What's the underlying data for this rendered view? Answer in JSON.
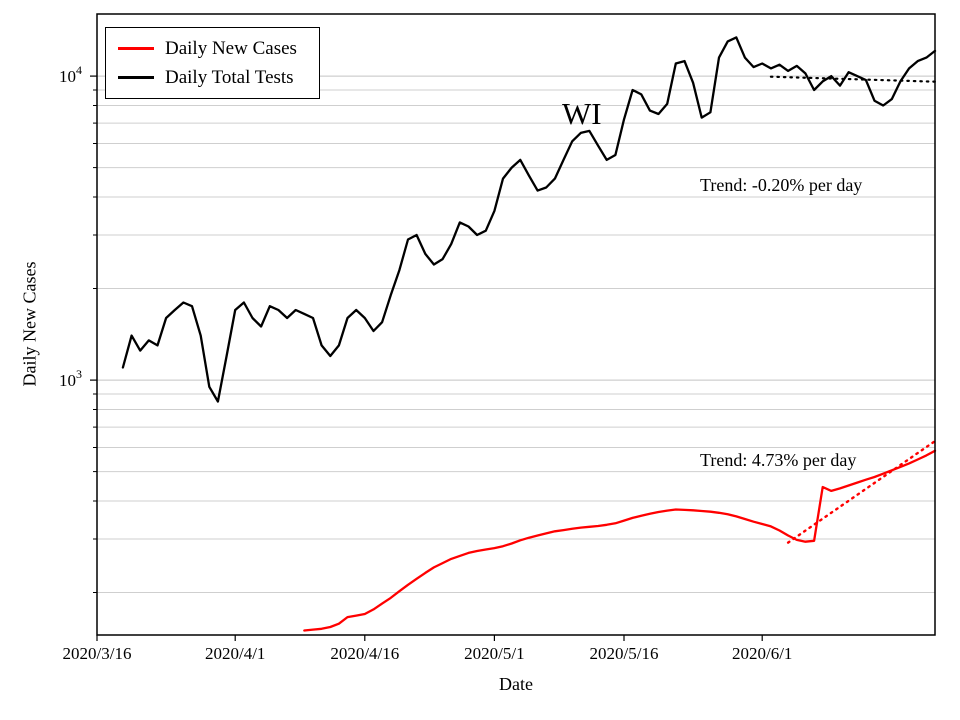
{
  "chart_data": {
    "type": "line",
    "title": "",
    "xlabel": "Date",
    "ylabel": "Daily New Cases",
    "yscale": "log",
    "ylim": [
      145,
      16000
    ],
    "xlim": [
      "2020/3/16",
      "2020/6/21"
    ],
    "x_ticks": [
      "2020/3/16",
      "2020/4/1",
      "2020/4/16",
      "2020/5/1",
      "2020/5/16",
      "2020/6/1"
    ],
    "y_ticks": [
      {
        "value": 1000,
        "base": "10",
        "exp": "3"
      },
      {
        "value": 10000,
        "base": "10",
        "exp": "4"
      }
    ],
    "grid": {
      "horizontal": true,
      "vertical": false,
      "which": "major+minor",
      "minor_color": "#cfcfcf",
      "major_color": "#c3c3c3"
    },
    "legend_position": "upper left",
    "annotations": {
      "state": "WI",
      "tests_trend": "Trend: -0.20% per day",
      "cases_trend": "Trend: 4.73% per day"
    },
    "series": [
      {
        "name": "Daily New Cases",
        "data_name": "daily-new-cases-line",
        "color": "#ff0000",
        "style": "solid",
        "width": 2.3,
        "start": "2020/4/9",
        "values": [
          150,
          151,
          152,
          154,
          158,
          166,
          168,
          170,
          176,
          184,
          192,
          202,
          212,
          222,
          232,
          242,
          250,
          258,
          264,
          270,
          274,
          277,
          280,
          284,
          290,
          297,
          303,
          308,
          313,
          318,
          321,
          324,
          327,
          329,
          331,
          334,
          338,
          345,
          352,
          358,
          363,
          368,
          372,
          375,
          374,
          373,
          371,
          369,
          366,
          362,
          356,
          349,
          342,
          336,
          330,
          320,
          308,
          298,
          294,
          296,
          445,
          432,
          440,
          450,
          460,
          470,
          480,
          492,
          505,
          518,
          532,
          548,
          565,
          585
        ]
      },
      {
        "name": "Daily Total Tests",
        "data_name": "daily-total-tests-line",
        "color": "#000000",
        "style": "solid",
        "width": 2.3,
        "start": "2020/3/19",
        "values": [
          1100,
          1400,
          1250,
          1350,
          1300,
          1600,
          1700,
          1800,
          1750,
          1400,
          950,
          850,
          1200,
          1700,
          1800,
          1600,
          1500,
          1750,
          1700,
          1600,
          1700,
          1650,
          1600,
          1300,
          1200,
          1300,
          1600,
          1700,
          1600,
          1450,
          1550,
          1900,
          2300,
          2900,
          3000,
          2600,
          2400,
          2500,
          2800,
          3300,
          3200,
          3000,
          3100,
          3600,
          4600,
          5000,
          5300,
          4700,
          4200,
          4300,
          4600,
          5300,
          6100,
          6500,
          6600,
          5900,
          5300,
          5500,
          7200,
          9000,
          8700,
          7700,
          7500,
          8100,
          11000,
          11200,
          9500,
          7300,
          7600,
          11500,
          13000,
          13400,
          11500,
          10700,
          11000,
          10600,
          10900,
          10400,
          10800,
          10200,
          9000,
          9600,
          10000,
          9300,
          10300,
          10000,
          9700,
          8300,
          8000,
          8400,
          9600,
          10600,
          11200,
          11500,
          12100
        ]
      },
      {
        "name": "Cases trend (4.73% per day)",
        "data_name": "cases-trend-line",
        "color": "#ff0000",
        "style": "dotted",
        "width": 2.4,
        "dates": [
          "2020/6/4",
          "2020/6/21"
        ],
        "values": [
          292,
          630
        ]
      },
      {
        "name": "Tests trend (-0.20% per day)",
        "data_name": "tests-trend-line",
        "color": "#000000",
        "style": "dotted",
        "width": 2.2,
        "dates": [
          "2020/6/2",
          "2020/6/21"
        ],
        "values": [
          9950,
          9580
        ]
      }
    ]
  }
}
